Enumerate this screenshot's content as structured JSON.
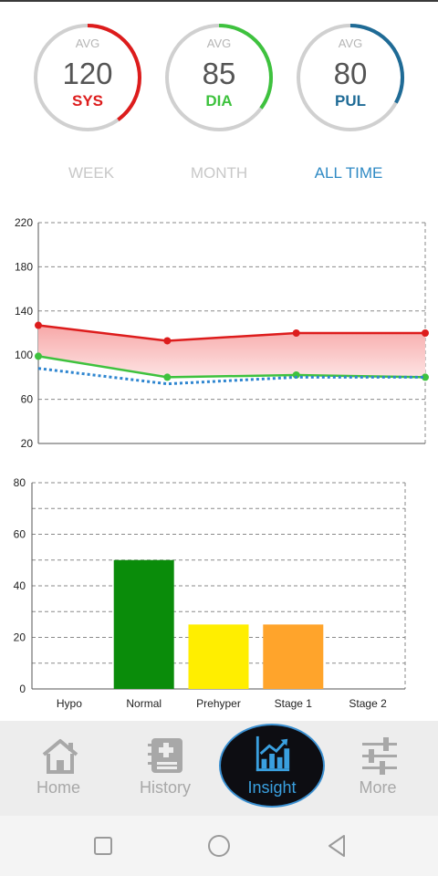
{
  "gauges": [
    {
      "avg_label": "AVG",
      "value": "120",
      "label": "SYS",
      "color": "#dd1c1c",
      "arc_fraction": 0.4
    },
    {
      "avg_label": "AVG",
      "value": "85",
      "label": "DIA",
      "color": "#3ec23e",
      "arc_fraction": 0.35
    },
    {
      "avg_label": "AVG",
      "value": "80",
      "label": "PUL",
      "color": "#1f6b96",
      "arc_fraction": 0.33
    }
  ],
  "tabs": [
    {
      "label": "WEEK",
      "active": false
    },
    {
      "label": "MONTH",
      "active": false
    },
    {
      "label": "ALL TIME",
      "active": true
    }
  ],
  "chart_data": [
    {
      "type": "line",
      "title": "",
      "x": [
        1,
        2,
        3,
        4
      ],
      "xlim": [
        1,
        4
      ],
      "ylim": [
        20,
        220
      ],
      "yticks": [
        20,
        60,
        100,
        140,
        180,
        220
      ],
      "grid": true,
      "series": [
        {
          "values": [
            127,
            113,
            120,
            120
          ],
          "color": "#dd1c1c",
          "style": "solid",
          "markers": true
        },
        {
          "values": [
            99,
            80,
            82,
            80
          ],
          "color": "#3ec23e",
          "style": "solid",
          "markers": true
        },
        {
          "values": [
            88,
            74,
            80,
            80
          ],
          "color": "#2f86d0",
          "style": "dotted",
          "markers": false
        }
      ],
      "fill_between": {
        "upper_series": 0,
        "lower_series": 1,
        "color": "#f7a8a8"
      }
    },
    {
      "type": "bar",
      "title": "",
      "categories": [
        "Hypo",
        "Normal",
        "Prehyper",
        "Stage 1",
        "Stage 2"
      ],
      "values": [
        0,
        50,
        25,
        25,
        0
      ],
      "colors": [
        "#888888",
        "#0a8c0a",
        "#ffee00",
        "#ffa42b",
        "#e53935"
      ],
      "ylim": [
        0,
        80
      ],
      "yticks": [
        0,
        20,
        40,
        60,
        80
      ],
      "grid": true
    }
  ],
  "nav": [
    {
      "label": "Home",
      "icon": "home-icon",
      "active": false
    },
    {
      "label": "History",
      "icon": "history-book-icon",
      "active": false
    },
    {
      "label": "Insight",
      "icon": "insight-chart-icon",
      "active": true
    },
    {
      "label": "More",
      "icon": "sliders-icon",
      "active": false
    }
  ]
}
